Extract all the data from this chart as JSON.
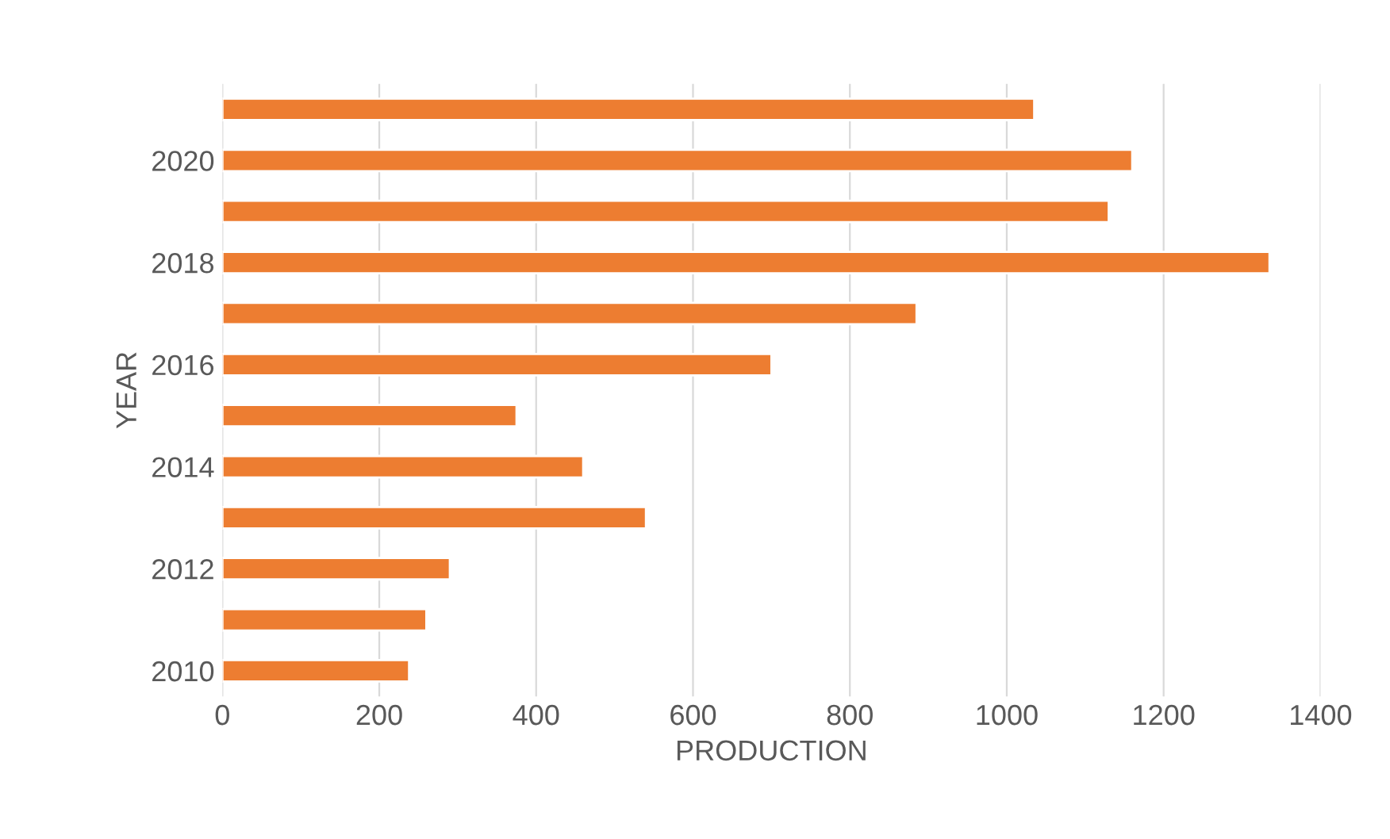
{
  "chart_data": {
    "type": "bar",
    "orientation": "horizontal",
    "xlabel": "PRODUCTION",
    "ylabel": "YEAR",
    "categories": [
      null,
      "2020",
      null,
      "2018",
      null,
      "2016",
      null,
      "2014",
      null,
      "2012",
      null,
      "2010"
    ],
    "values": [
      1035,
      1160,
      1130,
      1335,
      885,
      700,
      375,
      460,
      540,
      290,
      260,
      238
    ],
    "color": "#ed7d31",
    "xlim": [
      0,
      1400
    ],
    "xticks": [
      0,
      200,
      400,
      600,
      800,
      1000,
      1200,
      1400
    ],
    "grid": "x",
    "legend": false
  }
}
